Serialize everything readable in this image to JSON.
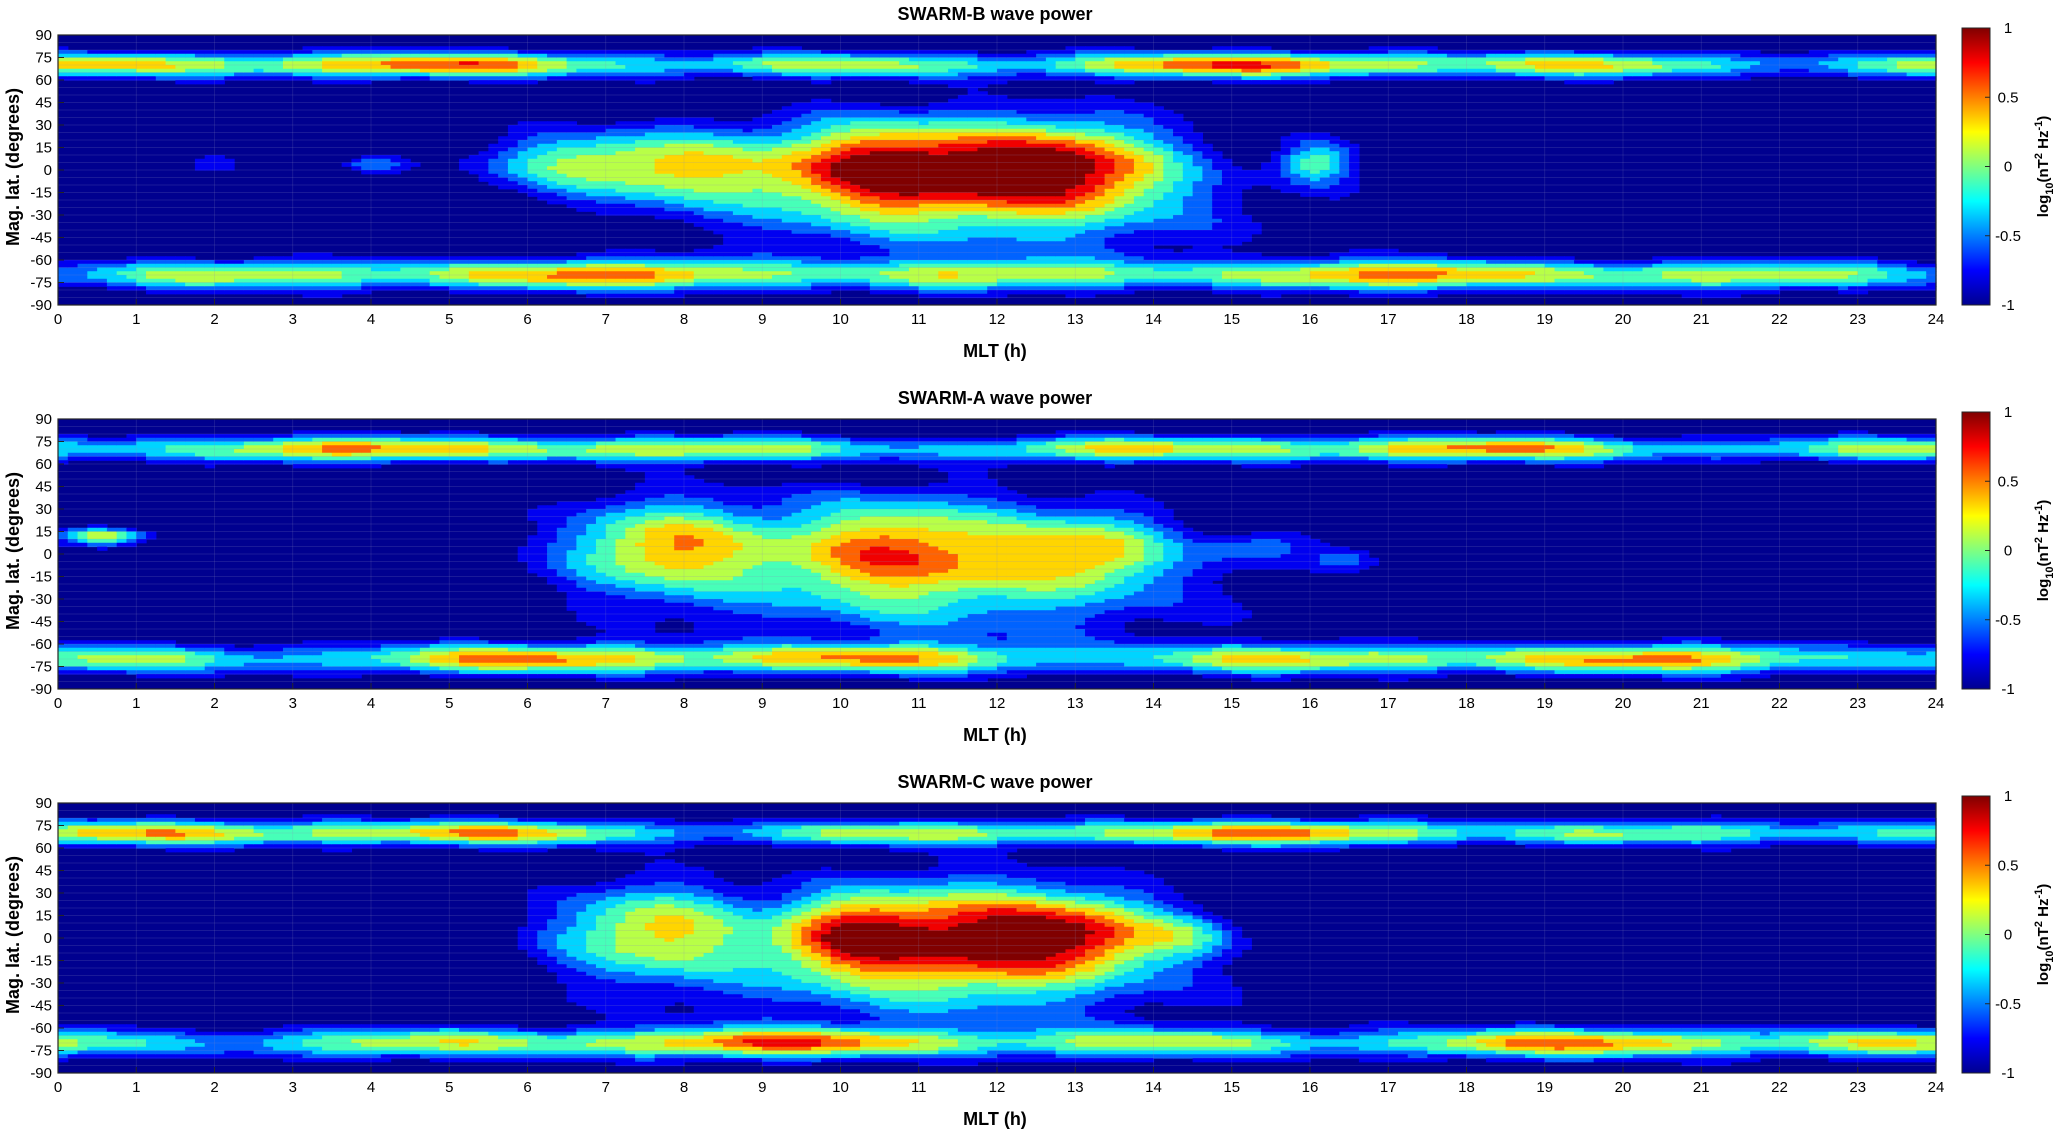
{
  "colors": {
    "background": "#00008F",
    "grid": "#8c8cbf",
    "contour": "#000000"
  },
  "colormap": "jet",
  "chart_data": [
    {
      "type": "heatmap",
      "title": "SWARM-B wave power",
      "xlabel": "MLT (h)",
      "ylabel": "Mag. lat. (degrees)",
      "xlim": [
        0,
        24
      ],
      "ylim": [
        -90,
        90
      ],
      "xticks": [
        "0",
        "1",
        "2",
        "3",
        "4",
        "5",
        "6",
        "7",
        "8",
        "9",
        "10",
        "11",
        "12",
        "13",
        "14",
        "15",
        "16",
        "17",
        "18",
        "19",
        "20",
        "21",
        "22",
        "23",
        "24"
      ],
      "yticks": [
        "90",
        "75",
        "60",
        "45",
        "30",
        "15",
        "0",
        "-15",
        "-30",
        "-45",
        "-60",
        "-75",
        "-90"
      ],
      "colorbar": {
        "label_pre": "log",
        "label_sub": "10",
        "label_mid": "(nT",
        "label_sup1": "2",
        "label_mid2": " Hz",
        "label_sup2": "-1",
        "label_post": ")",
        "ticks": [
          "1",
          "0.5",
          "0",
          "-0.5",
          "-1"
        ],
        "range": [
          -1,
          1
        ]
      },
      "features": [
        {
          "x": 10.6,
          "y": 2,
          "sx": 1.1,
          "sy": 22,
          "amp": 1.8
        },
        {
          "x": 12.9,
          "y": 2,
          "sx": 1.0,
          "sy": 22,
          "amp": 1.65
        },
        {
          "x": 7.9,
          "y": 2,
          "sx": 0.9,
          "sy": 18,
          "amp": 1.05
        },
        {
          "x": 6.4,
          "y": 5,
          "sx": 0.8,
          "sy": 14,
          "amp": 0.75
        },
        {
          "x": 11.8,
          "y": -30,
          "sx": 2.6,
          "sy": 28,
          "amp": 0.55
        },
        {
          "x": 16.1,
          "y": 5,
          "sx": 0.35,
          "sy": 10,
          "amp": 0.9
        },
        {
          "x": 4.0,
          "y": 3,
          "sx": 0.3,
          "sy": 4,
          "amp": 0.6
        },
        {
          "x": 2.0,
          "y": 5,
          "sx": 0.25,
          "sy": 5,
          "amp": 0.45
        }
      ],
      "bands": [
        {
          "y": 70,
          "sy": 6,
          "amp": 1.15,
          "mod": 0.45,
          "ph": 0.5
        },
        {
          "y": -70,
          "sy": 7,
          "amp": 1.1,
          "mod": 0.45,
          "ph": 1.7
        }
      ]
    },
    {
      "type": "heatmap",
      "title": "SWARM-A wave power",
      "xlabel": "MLT (h)",
      "ylabel": "Mag. lat. (degrees)",
      "xlim": [
        0,
        24
      ],
      "ylim": [
        -90,
        90
      ],
      "xticks": [
        "0",
        "1",
        "2",
        "3",
        "4",
        "5",
        "6",
        "7",
        "8",
        "9",
        "10",
        "11",
        "12",
        "13",
        "14",
        "15",
        "16",
        "17",
        "18",
        "19",
        "20",
        "21",
        "22",
        "23",
        "24"
      ],
      "yticks": [
        "90",
        "75",
        "60",
        "45",
        "30",
        "15",
        "0",
        "-15",
        "-30",
        "-45",
        "-60",
        "-75",
        "-90"
      ],
      "colorbar": {
        "label_pre": "log",
        "label_sub": "10",
        "label_mid": "(nT",
        "label_sup1": "2",
        "label_mid2": " Hz",
        "label_sup2": "-1",
        "label_post": ")",
        "ticks": [
          "1",
          "0.5",
          "0",
          "-0.5",
          "-1"
        ],
        "range": [
          -1,
          1
        ]
      },
      "features": [
        {
          "x": 7.7,
          "y": 5,
          "sx": 0.9,
          "sy": 22,
          "amp": 1.3
        },
        {
          "x": 10.8,
          "y": 5,
          "sx": 1.3,
          "sy": 24,
          "amp": 1.4
        },
        {
          "x": 13.3,
          "y": 3,
          "sx": 0.7,
          "sy": 18,
          "amp": 1.05
        },
        {
          "x": 11.5,
          "y": -30,
          "sx": 2.6,
          "sy": 26,
          "amp": 0.55
        },
        {
          "x": 0.6,
          "y": 12,
          "sx": 0.4,
          "sy": 4,
          "amp": 1.2
        },
        {
          "x": 15.4,
          "y": 5,
          "sx": 0.5,
          "sy": 8,
          "amp": 0.55
        },
        {
          "x": 16.5,
          "y": -3,
          "sx": 0.3,
          "sy": 5,
          "amp": 0.5
        }
      ],
      "bands": [
        {
          "y": 70,
          "sy": 6,
          "amp": 1.1,
          "mod": 0.45,
          "ph": 1.1
        },
        {
          "y": -70,
          "sy": 7,
          "amp": 1.1,
          "mod": 0.45,
          "ph": 2.3
        }
      ]
    },
    {
      "type": "heatmap",
      "title": "SWARM-C wave power",
      "xlabel": "MLT (h)",
      "ylabel": "Mag. lat. (degrees)",
      "xlim": [
        0,
        24
      ],
      "ylim": [
        -90,
        90
      ],
      "xticks": [
        "0",
        "1",
        "2",
        "3",
        "4",
        "5",
        "6",
        "7",
        "8",
        "9",
        "10",
        "11",
        "12",
        "13",
        "14",
        "15",
        "16",
        "17",
        "18",
        "19",
        "20",
        "21",
        "22",
        "23",
        "24"
      ],
      "yticks": [
        "90",
        "75",
        "60",
        "45",
        "30",
        "15",
        "0",
        "-15",
        "-30",
        "-45",
        "-60",
        "-75",
        "-90"
      ],
      "colorbar": {
        "label_pre": "log",
        "label_sub": "10",
        "label_mid": "(nT",
        "label_sup1": "2",
        "label_mid2": " Hz",
        "label_sup2": "-1",
        "label_post": ")",
        "ticks": [
          "1",
          "0.5",
          "0",
          "-0.5",
          "-1"
        ],
        "range": [
          -1,
          1
        ]
      },
      "features": [
        {
          "x": 7.6,
          "y": 5,
          "sx": 0.9,
          "sy": 22,
          "amp": 1.25
        },
        {
          "x": 11.5,
          "y": 3,
          "sx": 1.3,
          "sy": 24,
          "amp": 1.65
        },
        {
          "x": 13.2,
          "y": 3,
          "sx": 0.8,
          "sy": 18,
          "amp": 1.0
        },
        {
          "x": 10.0,
          "y": 2,
          "sx": 0.6,
          "sy": 18,
          "amp": 0.85
        },
        {
          "x": 11.3,
          "y": -30,
          "sx": 2.6,
          "sy": 26,
          "amp": 0.55
        },
        {
          "x": 14.5,
          "y": 2,
          "sx": 0.4,
          "sy": 10,
          "amp": 0.5
        }
      ],
      "bands": [
        {
          "y": 70,
          "sy": 6,
          "amp": 1.1,
          "mod": 0.45,
          "ph": 0.2
        },
        {
          "y": -70,
          "sy": 7,
          "amp": 1.1,
          "mod": 0.45,
          "ph": 2.9
        }
      ]
    }
  ]
}
